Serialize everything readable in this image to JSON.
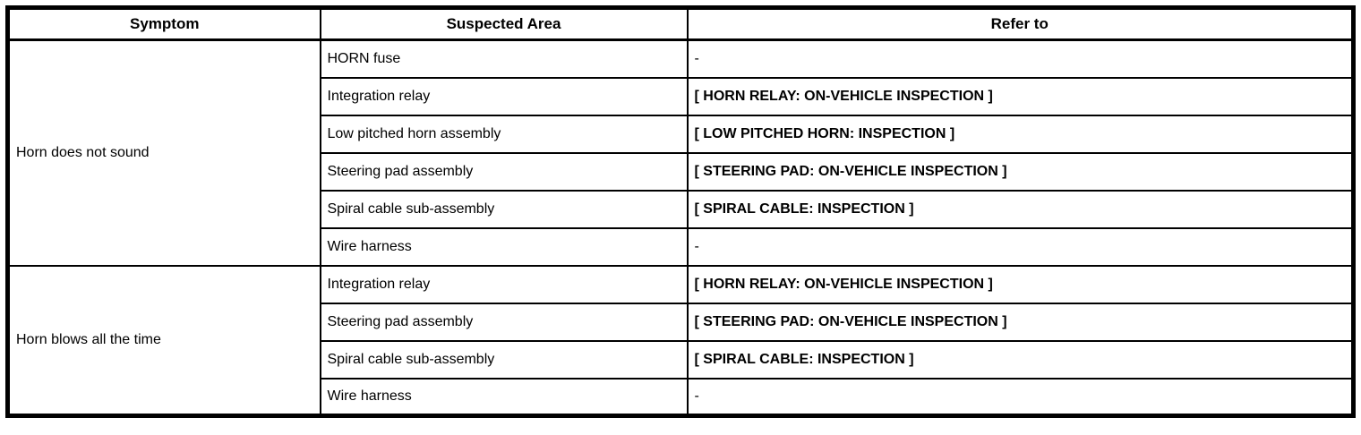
{
  "colors": {
    "border": "#000000",
    "background": "#ffffff",
    "text": "#000000"
  },
  "table": {
    "headers": {
      "symptom": "Symptom",
      "suspected_area": "Suspected Area",
      "refer_to": "Refer to"
    },
    "groups": [
      {
        "symptom": "Horn does not sound",
        "rows": [
          {
            "area": "HORN fuse",
            "refer": "-",
            "bold": false
          },
          {
            "area": "Integration relay",
            "refer": "[ HORN RELAY: ON-VEHICLE INSPECTION ]",
            "bold": true
          },
          {
            "area": "Low pitched horn assembly",
            "refer": "[ LOW PITCHED HORN: INSPECTION ]",
            "bold": true
          },
          {
            "area": "Steering pad assembly",
            "refer": "[ STEERING PAD: ON-VEHICLE INSPECTION ]",
            "bold": true
          },
          {
            "area": "Spiral cable sub-assembly",
            "refer": "[ SPIRAL CABLE: INSPECTION ]",
            "bold": true
          },
          {
            "area": "Wire harness",
            "refer": "-",
            "bold": false
          }
        ]
      },
      {
        "symptom": "Horn blows all the time",
        "rows": [
          {
            "area": "Integration relay",
            "refer": "[ HORN RELAY: ON-VEHICLE INSPECTION ]",
            "bold": true
          },
          {
            "area": "Steering pad assembly",
            "refer": "[ STEERING PAD: ON-VEHICLE INSPECTION ]",
            "bold": true
          },
          {
            "area": "Spiral cable sub-assembly",
            "refer": "[ SPIRAL CABLE: INSPECTION ]",
            "bold": true
          },
          {
            "area": "Wire harness",
            "refer": "-",
            "bold": false
          }
        ]
      }
    ]
  }
}
